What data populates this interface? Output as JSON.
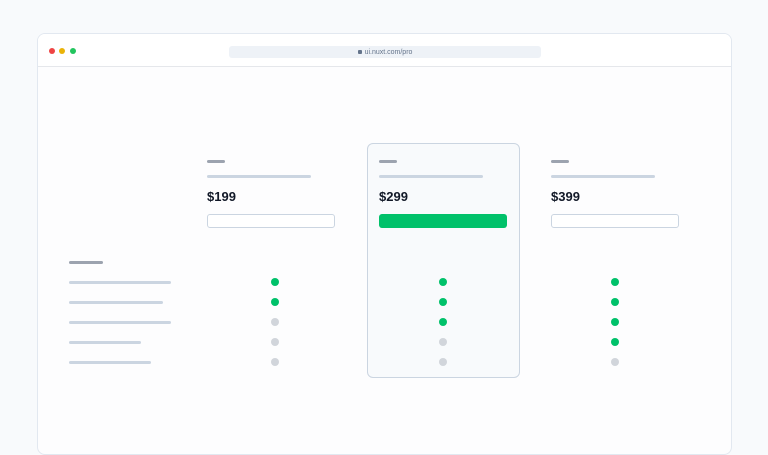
{
  "browser": {
    "url": "ui.nuxt.com/pro",
    "dots": [
      "#ef4444",
      "#eab308",
      "#22c55e"
    ]
  },
  "colors": {
    "included": "#00c16a",
    "excluded": "#d1d5db"
  },
  "plans": [
    {
      "price": "$199",
      "highlighted": false,
      "features": [
        true,
        true,
        false,
        false,
        false
      ]
    },
    {
      "price": "$299",
      "highlighted": true,
      "features": [
        true,
        true,
        true,
        false,
        false
      ]
    },
    {
      "price": "$399",
      "highlighted": false,
      "features": [
        true,
        true,
        true,
        true,
        false
      ]
    }
  ]
}
